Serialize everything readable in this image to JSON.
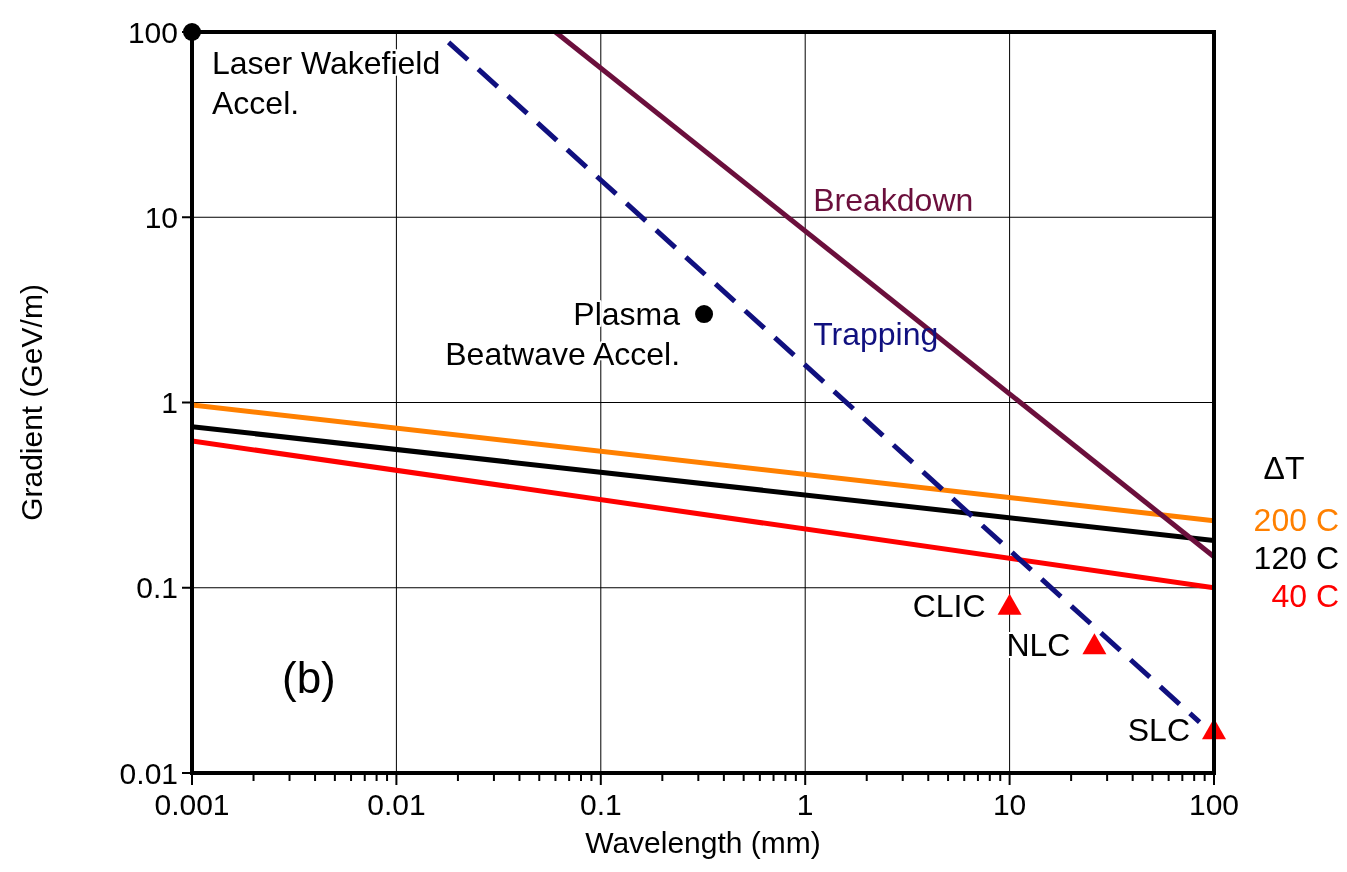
{
  "chart_data": {
    "type": "line",
    "xlabel": "Wavelength (mm)",
    "ylabel": "Gradient (GeV/m)",
    "log": "xy",
    "grid": true,
    "legend": "right",
    "legend_title": "ΔT",
    "xlim": [
      0.001,
      100
    ],
    "ylim": [
      0.01,
      100
    ],
    "xticks": [
      0.001,
      {
        "value": 0.002,
        "label": null
      },
      {
        "value": 0.003,
        "label": null
      },
      {
        "value": 0.004,
        "label": null
      },
      {
        "value": 0.005,
        "label": null
      },
      {
        "value": 0.006,
        "label": null
      },
      {
        "value": 0.007,
        "label": null
      },
      {
        "value": 0.008,
        "label": null
      },
      {
        "value": 0.009,
        "label": null
      },
      0.01,
      {
        "value": 0.02,
        "label": null
      },
      {
        "value": 0.03,
        "label": null
      },
      {
        "value": 0.04,
        "label": null
      },
      {
        "value": 0.05,
        "label": null
      },
      {
        "value": 0.06,
        "label": null
      },
      {
        "value": 0.07,
        "label": null
      },
      {
        "value": 0.08,
        "label": null
      },
      {
        "value": 0.09,
        "label": null
      },
      0.1,
      {
        "value": 0.2,
        "label": null
      },
      {
        "value": 0.3,
        "label": null
      },
      {
        "value": 0.4,
        "label": null
      },
      {
        "value": 0.5,
        "label": null
      },
      {
        "value": 0.6,
        "label": null
      },
      {
        "value": 0.7,
        "label": null
      },
      {
        "value": 0.8,
        "label": null
      },
      {
        "value": 0.9,
        "label": null
      },
      1,
      {
        "value": 2,
        "label": null
      },
      {
        "value": 3,
        "label": null
      },
      {
        "value": 4,
        "label": null
      },
      {
        "value": 5,
        "label": null
      },
      {
        "value": 6,
        "label": null
      },
      {
        "value": 7,
        "label": null
      },
      {
        "value": 8,
        "label": null
      },
      {
        "value": 9,
        "label": null
      },
      10,
      {
        "value": 20,
        "label": null
      },
      {
        "value": 30,
        "label": null
      },
      {
        "value": 40,
        "label": null
      },
      {
        "value": 50,
        "label": null
      },
      {
        "value": 60,
        "label": null
      },
      {
        "value": 70,
        "label": null
      },
      {
        "value": 80,
        "label": null
      },
      {
        "value": 90,
        "label": null
      },
      100
    ],
    "yticks": [
      0.01,
      0.1,
      1,
      10,
      100
    ],
    "series": [
      {
        "name": "200 C",
        "color": "#ff8000",
        "x": [
          0.001,
          100
        ],
        "values": [
          0.97,
          0.23
        ]
      },
      {
        "name": "120 C",
        "color": "#000000",
        "x": [
          0.001,
          100
        ],
        "values": [
          0.74,
          0.18
        ]
      },
      {
        "name": "40 C",
        "color": "#ff0000",
        "x": [
          0.001,
          100
        ],
        "values": [
          0.62,
          0.1
        ]
      },
      {
        "name": "Breakdown",
        "color": "#6b0f3c",
        "x": [
          0.06,
          100
        ],
        "values": [
          100,
          0.147
        ]
      },
      {
        "name": "Trapping",
        "color": "#10107f",
        "line_style": "dashed",
        "x": [
          0.018,
          85
        ],
        "values": [
          88,
          0.0188
        ]
      },
      {
        "type": "scatter",
        "color": "#000000",
        "marker": "circle",
        "x": [
          0.001,
          0.32
        ],
        "values": [
          100,
          3
        ]
      },
      {
        "type": "scatter",
        "color": "#ff0000",
        "marker": "triangle",
        "x": [
          10,
          26,
          100
        ],
        "values": [
          0.08,
          0.049,
          0.017
        ]
      }
    ],
    "annotations": [
      {
        "text": "Laser Wakefield\nAccel.",
        "x": 0.001,
        "y": 100
      },
      {
        "text": "Plasma\nBeatwave Accel.",
        "x": 0.32,
        "y": 3
      },
      {
        "text": "CLIC",
        "x": 10,
        "y": 0.08
      },
      {
        "text": "NLC",
        "x": 26,
        "y": 0.049
      },
      {
        "text": "SLC",
        "x": 100,
        "y": 0.017
      },
      "(b)"
    ]
  }
}
